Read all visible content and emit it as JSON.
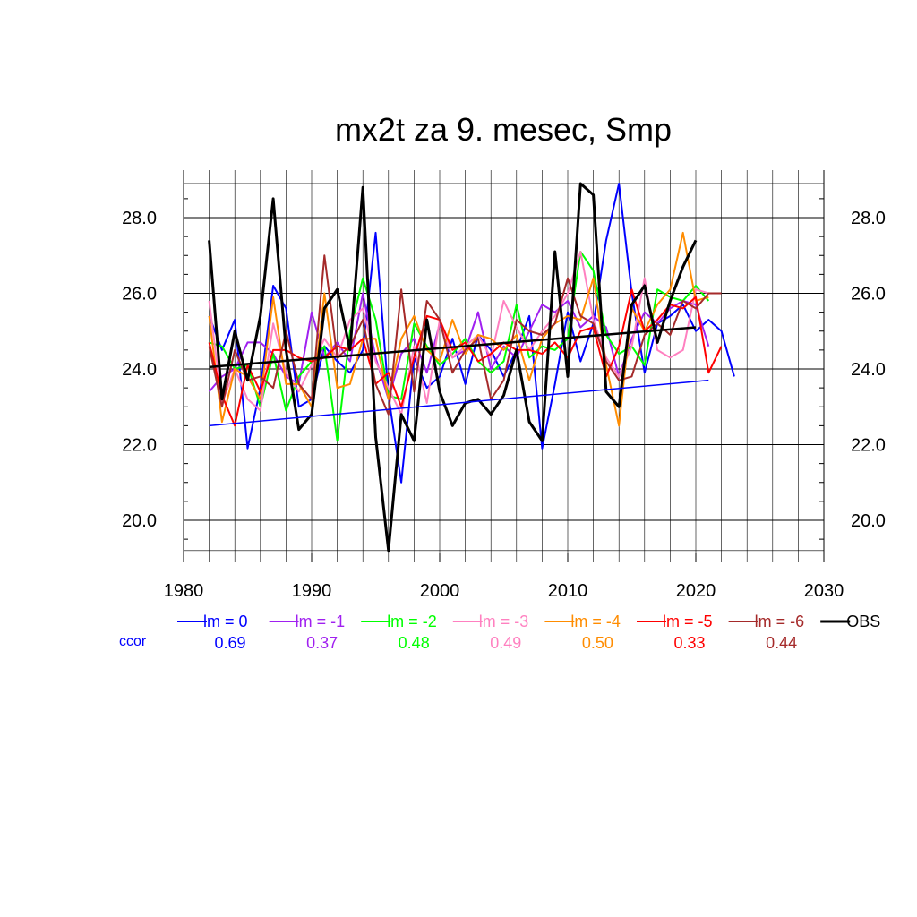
{
  "chart_data": {
    "type": "line",
    "title": "mx2t za 9. mesec, Smp",
    "xlabel": "",
    "ylabel": "",
    "xlim": [
      1980,
      2030
    ],
    "ylim": [
      19.2,
      28.9
    ],
    "x_ticks": [
      1980,
      1990,
      2000,
      2010,
      2020,
      2030
    ],
    "x_tick_labels": [
      "1980",
      "1990",
      "2000",
      "2010",
      "2020",
      "2030"
    ],
    "y_ticks": [
      20,
      22,
      24,
      26,
      28
    ],
    "y_tick_labels": [
      "20.0",
      "22.0",
      "24.0",
      "26.0",
      "28.0"
    ],
    "grid": true,
    "legend_position": "bottom",
    "ccor_label": "ccor",
    "series": [
      {
        "name": "lm = 0",
        "color": "#0000ff",
        "ccor": "0.69",
        "x_start": 1982,
        "values": [
          25.4,
          24.5,
          25.3,
          21.9,
          23.5,
          26.2,
          25.6,
          23.0,
          23.2,
          24.6,
          24.2,
          23.9,
          24.5,
          27.6,
          23.3,
          21.0,
          24.3,
          23.5,
          23.8,
          24.8,
          23.6,
          24.9,
          24.5,
          23.8,
          24.5,
          25.4,
          21.9,
          23.6,
          25.5,
          24.2,
          25.2,
          27.4,
          28.9,
          26.0,
          23.9,
          25.2,
          25.4,
          25.7,
          25.0,
          25.3,
          25.0,
          23.8
        ],
        "trend": [
          22.5,
          23.7
        ],
        "trend_x": [
          1982,
          2021
        ]
      },
      {
        "name": "lm = -1",
        "color": "#a020f0",
        "ccor": "0.37",
        "x_start": 1982,
        "values": [
          23.4,
          23.8,
          24.0,
          24.7,
          24.7,
          24.4,
          23.8,
          23.6,
          25.5,
          24.3,
          24.7,
          24.2,
          26.0,
          24.3,
          23.2,
          24.4,
          24.8,
          23.9,
          25.2,
          24.3,
          24.5,
          25.5,
          24.0,
          24.6,
          24.3,
          25.0,
          25.7,
          25.5,
          25.8,
          25.1,
          25.4,
          25.1,
          23.8,
          24.8,
          25.5,
          25.2,
          25.6,
          25.8,
          25.7,
          24.6
        ],
        "trend": null
      },
      {
        "name": "lm = -2",
        "color": "#00ff00",
        "ccor": "0.48",
        "x_start": 1982,
        "values": [
          24.7,
          24.6,
          24.0,
          24.1,
          23.0,
          24.4,
          22.9,
          23.8,
          24.2,
          24.6,
          22.1,
          25.0,
          26.4,
          25.3,
          23.3,
          23.2,
          25.2,
          24.6,
          24.1,
          24.4,
          24.8,
          24.2,
          23.9,
          24.2,
          25.7,
          24.3,
          24.6,
          24.5,
          24.8,
          27.1,
          26.6,
          24.9,
          24.4,
          24.6,
          24.1,
          26.1,
          25.9,
          25.8,
          26.2,
          25.8
        ],
        "trend": null
      },
      {
        "name": "lm = -3",
        "color": "#ff80c0",
        "ccor": "0.49",
        "x_start": 1982,
        "values": [
          25.8,
          23.1,
          24.0,
          23.2,
          22.9,
          25.2,
          23.9,
          23.4,
          24.1,
          24.8,
          24.3,
          25.3,
          25.6,
          24.2,
          23.5,
          22.8,
          24.6,
          23.1,
          25.3,
          24.3,
          24.6,
          24.9,
          24.3,
          25.8,
          25.1,
          24.5,
          25.0,
          25.4,
          26.0,
          27.1,
          25.3,
          24.3,
          23.8,
          24.6,
          26.4,
          24.5,
          24.3,
          24.5,
          26.1,
          26.0
        ],
        "trend": null
      },
      {
        "name": "lm = -4",
        "color": "#ff8c00",
        "ccor": "0.50",
        "x_start": 1982,
        "values": [
          25.4,
          22.6,
          24.0,
          23.8,
          23.2,
          25.9,
          23.6,
          23.6,
          23.0,
          26.0,
          23.5,
          23.6,
          24.8,
          24.8,
          23.2,
          24.8,
          25.4,
          24.5,
          24.2,
          25.3,
          24.4,
          24.9,
          24.8,
          24.5,
          24.9,
          23.7,
          24.8,
          25.2,
          25.4,
          25.3,
          26.4,
          24.1,
          22.5,
          25.6,
          25.0,
          25.7,
          26.1,
          27.6,
          25.8,
          25.9
        ],
        "trend": null
      },
      {
        "name": "lm = -5",
        "color": "#ff0000",
        "ccor": "0.33",
        "x_start": 1982,
        "values": [
          24.7,
          23.3,
          22.5,
          24.1,
          23.4,
          24.5,
          24.5,
          24.3,
          24.2,
          24.3,
          24.6,
          24.5,
          24.8,
          23.6,
          23.9,
          23.0,
          24.3,
          25.4,
          25.3,
          24.5,
          24.7,
          24.2,
          24.4,
          24.7,
          24.5,
          24.5,
          24.4,
          24.7,
          24.3,
          25.0,
          25.1,
          23.8,
          24.6,
          26.1,
          25.0,
          25.3,
          25.7,
          25.6,
          25.9,
          23.9,
          24.6
        ],
        "trend": null
      },
      {
        "name": "lm = -6",
        "color": "#a52a2a",
        "ccor": "0.44",
        "x_start": 1982,
        "values": [
          24.6,
          23.0,
          24.5,
          23.7,
          23.8,
          23.5,
          25.0,
          23.6,
          23.2,
          27.0,
          24.3,
          24.6,
          25.3,
          23.6,
          22.8,
          26.1,
          23.4,
          25.8,
          25.3,
          23.9,
          24.5,
          24.8,
          23.2,
          23.7,
          25.3,
          25.0,
          24.9,
          25.2,
          26.4,
          25.4,
          25.2,
          24.2,
          23.7,
          23.8,
          24.9,
          25.2,
          24.9,
          25.8,
          25.6,
          26.0,
          26.0
        ],
        "trend": null
      },
      {
        "name": "OBS",
        "color": "#000000",
        "ccor": "",
        "x_start": 1982,
        "values": [
          27.4,
          23.2,
          25.0,
          23.7,
          25.4,
          28.5,
          24.5,
          22.4,
          22.8,
          25.6,
          26.1,
          24.5,
          28.8,
          22.2,
          19.2,
          22.8,
          22.1,
          25.3,
          23.4,
          22.5,
          23.1,
          23.2,
          22.8,
          23.3,
          24.5,
          22.6,
          22.1,
          27.1,
          23.8,
          28.9,
          28.6,
          23.4,
          23.0,
          25.7,
          26.2,
          24.7,
          25.8,
          26.7,
          27.4
        ],
        "trend": [
          24.05,
          25.1
        ],
        "trend_x": [
          1982,
          2020
        ]
      }
    ]
  }
}
